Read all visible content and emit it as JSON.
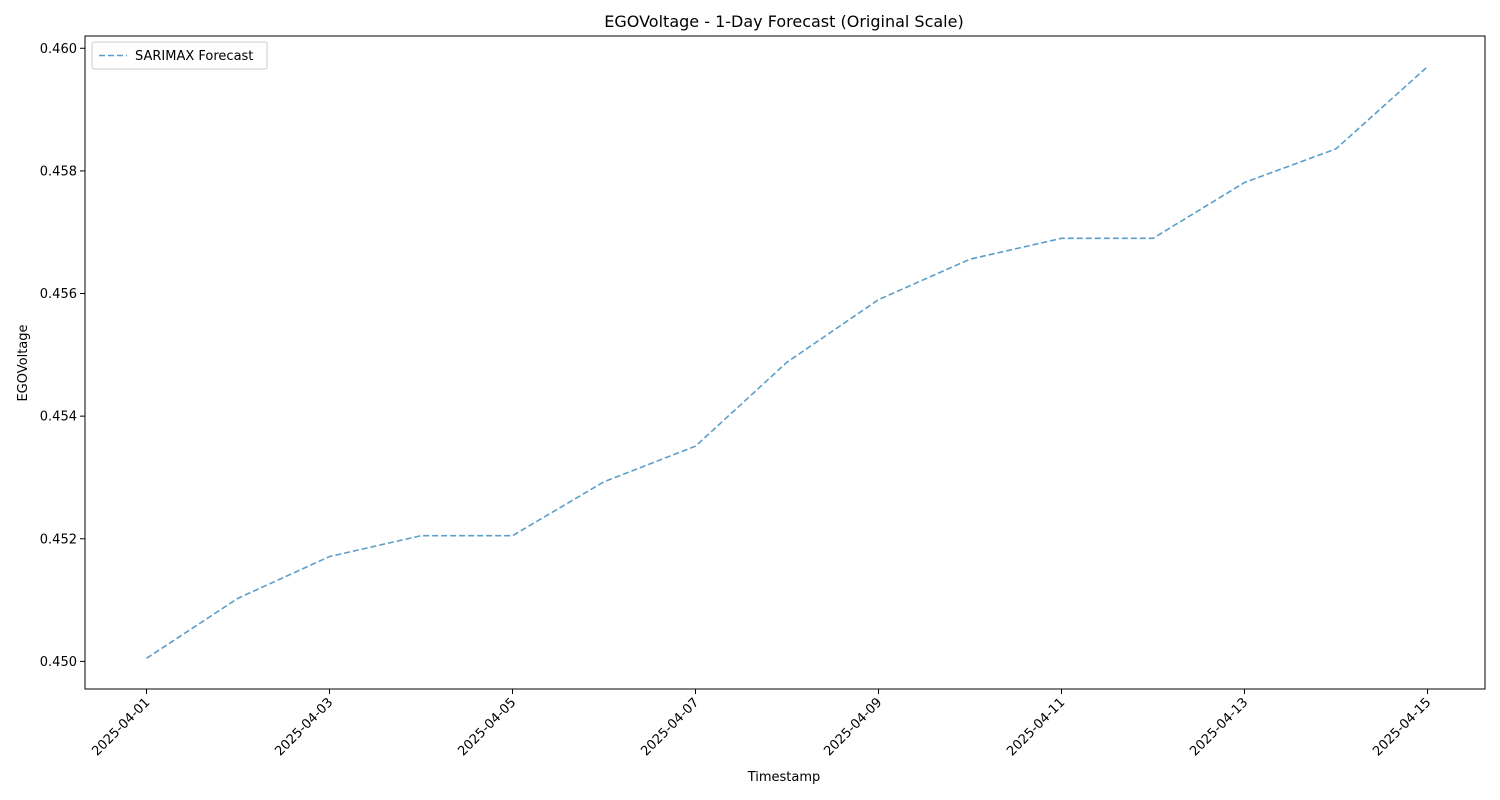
{
  "chart_data": {
    "type": "line",
    "title": "EGOVoltage - 1-Day Forecast (Original Scale)",
    "xlabel": "Timestamp",
    "ylabel": "EGOVoltage",
    "x": [
      "2025-04-01",
      "2025-04-02",
      "2025-04-03",
      "2025-04-04",
      "2025-04-05",
      "2025-04-06",
      "2025-04-07",
      "2025-04-08",
      "2025-04-09",
      "2025-04-10",
      "2025-04-11",
      "2025-04-12",
      "2025-04-13",
      "2025-04-14",
      "2025-04-15"
    ],
    "series": [
      {
        "name": "SARIMAX Forecast",
        "color": "#5b9ec9",
        "line_style": "dashed",
        "values": [
          0.45005,
          0.45103,
          0.45171,
          0.45205,
          0.45205,
          0.45293,
          0.45351,
          0.45488,
          0.4559,
          0.45656,
          0.4569,
          0.4569,
          0.45781,
          0.45836,
          0.4597
        ]
      }
    ],
    "x_ticks": [
      "2025-04-01",
      "2025-04-03",
      "2025-04-05",
      "2025-04-07",
      "2025-04-09",
      "2025-04-11",
      "2025-04-13",
      "2025-04-15"
    ],
    "y_ticks": [
      "0.450",
      "0.452",
      "0.454",
      "0.456",
      "0.458",
      "0.460"
    ],
    "ylim": [
      0.44955,
      0.4602
    ],
    "xlim": [
      "2025-03-31T07:52",
      "2025-04-15T15:05"
    ],
    "grid": false,
    "legend_position": "top-left"
  }
}
